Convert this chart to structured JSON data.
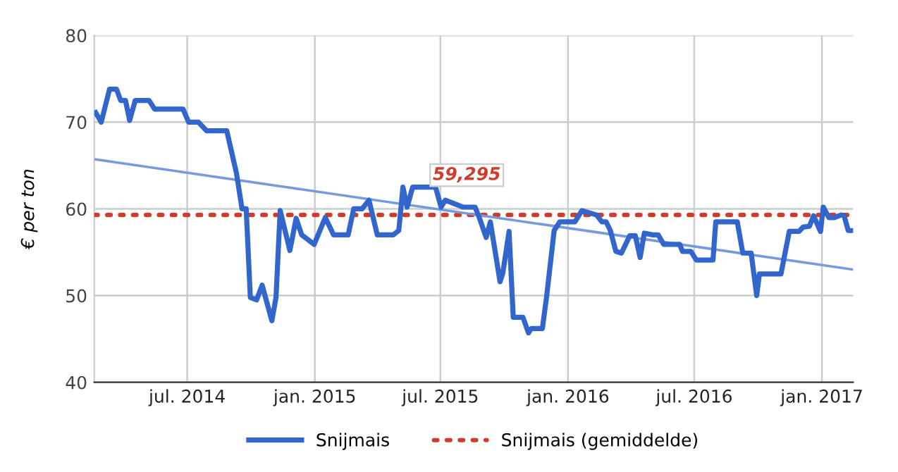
{
  "chart_data": {
    "type": "line",
    "ylabel": "€ per ton",
    "xlim": [
      "2014-02-17",
      "2017-02-15"
    ],
    "ylim": [
      40,
      80
    ],
    "yticks": [
      40,
      50,
      60,
      70,
      80
    ],
    "xticks": [
      {
        "value": "2014-07-01",
        "label": "jul. 2014"
      },
      {
        "value": "2015-01-01",
        "label": "jan. 2015"
      },
      {
        "value": "2015-07-01",
        "label": "jul. 2015"
      },
      {
        "value": "2016-01-01",
        "label": "jan. 2016"
      },
      {
        "value": "2016-07-01",
        "label": "jul. 2016"
      },
      {
        "value": "2017-01-01",
        "label": "jan. 2017"
      }
    ],
    "grid": true,
    "legend": "bottom",
    "marker": "none",
    "series": [
      {
        "name": "Snijmais",
        "color": "#3366cc",
        "line_style": "solid",
        "x": [
          "2014-02-19",
          "2014-02-27",
          "2014-03-11",
          "2014-03-21",
          "2014-03-27",
          "2014-04-03",
          "2014-04-09",
          "2014-04-17",
          "2014-05-07",
          "2014-05-15",
          "2014-06-25",
          "2014-07-03",
          "2014-07-17",
          "2014-07-29",
          "2014-08-27",
          "2014-09-04",
          "2014-09-10",
          "2014-09-18",
          "2014-09-24",
          "2014-09-30",
          "2014-10-09",
          "2014-10-17",
          "2014-10-31",
          "2014-11-06",
          "2014-11-12",
          "2014-11-26",
          "2014-12-05",
          "2014-12-13",
          "2014-12-31",
          "2015-01-16",
          "2015-01-28",
          "2015-02-18",
          "2015-02-26",
          "2015-03-10",
          "2015-03-20",
          "2015-04-01",
          "2015-04-24",
          "2015-05-02",
          "2015-05-08",
          "2015-05-14",
          "2015-05-22",
          "2015-06-24",
          "2015-07-02",
          "2015-07-08",
          "2015-08-03",
          "2015-08-20",
          "2015-08-26",
          "2015-09-05",
          "2015-09-11",
          "2015-09-25",
          "2015-09-29",
          "2015-10-08",
          "2015-10-14",
          "2015-10-28",
          "2015-11-05",
          "2015-11-09",
          "2015-11-25",
          "2015-12-01",
          "2015-12-12",
          "2015-12-20",
          "2016-01-11",
          "2016-01-21",
          "2016-02-11",
          "2016-02-19",
          "2016-02-25",
          "2016-03-02",
          "2016-03-10",
          "2016-03-18",
          "2016-03-30",
          "2016-04-07",
          "2016-04-14",
          "2016-04-20",
          "2016-05-02",
          "2016-05-10",
          "2016-05-18",
          "2016-06-10",
          "2016-06-14",
          "2016-06-26",
          "2016-07-04",
          "2016-07-28",
          "2016-08-01",
          "2016-09-01",
          "2016-09-09",
          "2016-09-21",
          "2016-09-29",
          "2016-10-03",
          "2016-11-03",
          "2016-11-15",
          "2016-11-29",
          "2016-12-05",
          "2016-12-14",
          "2016-12-20",
          "2016-12-30",
          "2017-01-03",
          "2017-01-11",
          "2017-01-19",
          "2017-01-29",
          "2017-02-02",
          "2017-02-08",
          "2017-02-15"
        ],
        "values": [
          71.1,
          70,
          73.8,
          73.8,
          72.5,
          72.5,
          70.2,
          72.5,
          72.5,
          71.5,
          71.5,
          70,
          70,
          69,
          69,
          66.2,
          64.1,
          60,
          60,
          49.8,
          49.5,
          51.2,
          47.1,
          49.8,
          59.8,
          55.2,
          58.9,
          57,
          55.9,
          59,
          57,
          57,
          60,
          60,
          61,
          57,
          57,
          57.5,
          62.5,
          60.2,
          62.5,
          62.5,
          60.2,
          61,
          60.2,
          60.2,
          59,
          56.7,
          58.5,
          51.6,
          52.6,
          57.4,
          47.5,
          47.5,
          45.7,
          46.2,
          46.2,
          49.8,
          57.5,
          58.5,
          58.5,
          59.8,
          59.3,
          58.5,
          58.5,
          57.5,
          55.1,
          54.9,
          56.9,
          56.9,
          54.4,
          57.2,
          57,
          57,
          55.9,
          55.9,
          55.1,
          55.1,
          54.1,
          54.1,
          58.5,
          58.5,
          54.9,
          54.9,
          50,
          52.5,
          52.5,
          57.4,
          57.4,
          57.9,
          58,
          59.2,
          57.4,
          60.2,
          59,
          59,
          59.3,
          59.2,
          57.5,
          57.5
        ]
      },
      {
        "name": "Snijmais (gemiddelde)",
        "color": "#d03b2a",
        "line_style": "dotted",
        "x": [
          "2014-02-17",
          "2017-02-15"
        ],
        "values": [
          59.295,
          59.295
        ]
      },
      {
        "color": "#7799dd",
        "line_style": "solid",
        "x": [
          "2014-02-19",
          "2017-02-15"
        ],
        "values": [
          65.7,
          53
        ]
      }
    ],
    "annotations": [
      {
        "text": "59,295",
        "x": "2015-08-08",
        "y": 59.295
      }
    ]
  }
}
